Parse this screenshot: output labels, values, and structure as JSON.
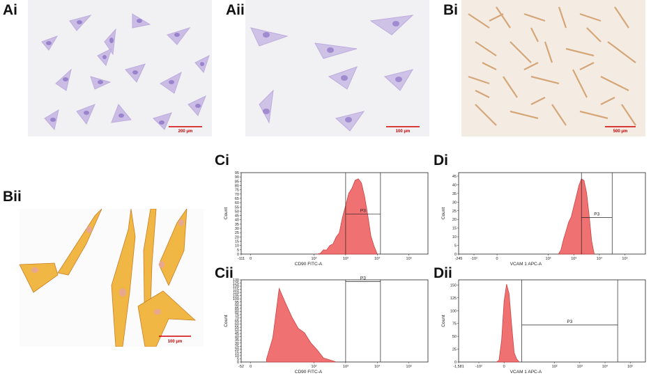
{
  "panels": {
    "ai": {
      "label": "Ai",
      "scale": "200 μm"
    },
    "aii": {
      "label": "Aii",
      "scale": "100 μm"
    },
    "bi": {
      "label": "Bi",
      "scale": "500 μm"
    },
    "bii": {
      "label": "Bii",
      "scale": "100 μm"
    },
    "ci": {
      "label": "Ci"
    },
    "cii": {
      "label": "Cii"
    },
    "di": {
      "label": "Di"
    },
    "dii": {
      "label": "Dii"
    }
  },
  "colors": {
    "histogram_fill": "#f06a6a",
    "histogram_stroke": "#c83a3a",
    "crystal_violet": "#9a7fc8",
    "dab_brown": "#d4a06e",
    "orange_stain": "#e49a28",
    "scale_red": "#d00000"
  },
  "chart_data": [
    {
      "id": "ci",
      "type": "area",
      "xlabel": "CD90 FITC-A",
      "ylabel": "Count",
      "gate": "P3",
      "xticks": [
        "-111",
        "0",
        "10²",
        "10³",
        "10⁴",
        "10⁵"
      ],
      "yticks": [
        "0",
        "5",
        "10",
        "15",
        "20",
        "25",
        "30",
        "35",
        "40",
        "45",
        "50",
        "55",
        "60",
        "65",
        "70",
        "75",
        "80",
        "85",
        "90",
        "95"
      ],
      "ylim": [
        0,
        95
      ],
      "x": [
        2.1,
        2.2,
        2.3,
        2.4,
        2.5,
        2.6,
        2.7,
        2.8,
        2.9,
        3.0,
        3.1,
        3.2,
        3.3,
        3.4,
        3.5,
        3.6,
        3.7,
        3.8,
        3.9,
        4.0
      ],
      "values": [
        0,
        2,
        4,
        6,
        9,
        13,
        19,
        26,
        42,
        58,
        70,
        78,
        85,
        89,
        82,
        68,
        44,
        22,
        8,
        0
      ]
    },
    {
      "id": "cii",
      "type": "area",
      "xlabel": "CD90 FITC-A",
      "ylabel": "Count",
      "gate": "P3",
      "xticks": [
        "-52",
        "0",
        "10²",
        "10³",
        "10⁴",
        "10⁵"
      ],
      "yticks": [
        "0",
        "5",
        "10",
        "15",
        "20",
        "25",
        "30",
        "35",
        "40",
        "45",
        "50",
        "55",
        "60",
        "65",
        "70",
        "75",
        "80",
        "85",
        "90",
        "95",
        "100",
        "105",
        "110",
        "115",
        "120",
        "125",
        "130"
      ],
      "ylim": [
        0,
        130
      ],
      "x": [
        1.2,
        1.4,
        1.6,
        1.8,
        2.0,
        2.2,
        2.4,
        2.6,
        2.8,
        3.0,
        3.2,
        3.4
      ],
      "values": [
        3,
        40,
        115,
        95,
        70,
        55,
        45,
        32,
        18,
        8,
        2,
        0
      ]
    },
    {
      "id": "di",
      "type": "area",
      "xlabel": "VCAM 1 APC-A",
      "ylabel": "Count",
      "gate": "P3",
      "xticks": [
        "-245",
        "-10²",
        "0",
        "10²",
        "10³",
        "10⁴",
        "10⁵"
      ],
      "yticks": [
        "0",
        "5",
        "10",
        "15",
        "20",
        "25",
        "30",
        "35",
        "40",
        "45"
      ],
      "ylim": [
        0,
        47
      ],
      "x": [
        2.4,
        2.5,
        2.6,
        2.7,
        2.8,
        2.9,
        3.0,
        3.1,
        3.2,
        3.3,
        3.4,
        3.5,
        3.6,
        3.7,
        3.8
      ],
      "values": [
        0,
        3,
        8,
        14,
        18,
        22,
        27,
        34,
        39,
        44,
        42,
        36,
        22,
        8,
        0
      ]
    },
    {
      "id": "dii",
      "type": "area",
      "xlabel": "VCAM 1 APC-A",
      "ylabel": "Count",
      "gate": "P3",
      "xticks": [
        "-1,581",
        "-10²",
        "0",
        "10²",
        "10³",
        "10⁴",
        "10⁵"
      ],
      "yticks": [
        "0",
        "25",
        "50",
        "75",
        "100",
        "125",
        "150"
      ],
      "ylim": [
        0,
        160
      ],
      "x": [
        -0.4,
        -0.3,
        -0.2,
        -0.1,
        0.0,
        0.1,
        0.2,
        0.3,
        0.4,
        0.5
      ],
      "values": [
        0,
        5,
        40,
        120,
        150,
        135,
        70,
        20,
        4,
        0
      ]
    }
  ]
}
